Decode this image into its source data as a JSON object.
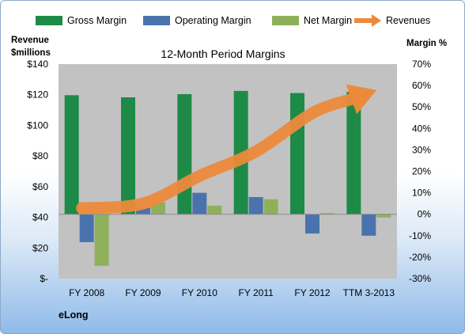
{
  "chart_data": {
    "type": "bar",
    "title": "12-Month Period Margins",
    "categories": [
      "FY 2008",
      "FY 2009",
      "FY 2010",
      "FY 2011",
      "FY 2012",
      "TTM 3-2013"
    ],
    "series": [
      {
        "name": "Gross Margin",
        "axis": "right",
        "values": [
          55.5,
          54.5,
          56,
          57.5,
          56.5,
          57
        ]
      },
      {
        "name": "Operating Margin",
        "axis": "right",
        "values": [
          -13,
          3,
          10,
          8,
          -9,
          -10
        ]
      },
      {
        "name": "Net Margin",
        "axis": "right",
        "values": [
          -24,
          5.5,
          4,
          7,
          0.5,
          -1.5
        ]
      },
      {
        "name": "Revenues",
        "type": "arrow",
        "axis": "left",
        "values": [
          46,
          49,
          67,
          83,
          108,
          123
        ]
      }
    ],
    "left_axis": {
      "title_line1": "Revenue",
      "title_line2": "$millions",
      "min": 0,
      "max": 140,
      "tick_labels": [
        "$140",
        "$120",
        "$100",
        "$80",
        "$60",
        "$40",
        "$20",
        "$-"
      ]
    },
    "right_axis": {
      "title": "Margin %",
      "min": -30,
      "max": 70,
      "tick_labels": [
        "70%",
        "60%",
        "50%",
        "40%",
        "30%",
        "20%",
        "10%",
        "0%",
        "-10%",
        "-20%",
        "-30%"
      ]
    },
    "legend_position": "top",
    "grid": false,
    "colors": {
      "Gross Margin": "#1e8a47",
      "Operating Margin": "#4a73ad",
      "Net Margin": "#8eb05a",
      "Revenues": "#ec8a3c",
      "plot_background": "#c2c2c2"
    }
  },
  "brand_label": "eLong"
}
